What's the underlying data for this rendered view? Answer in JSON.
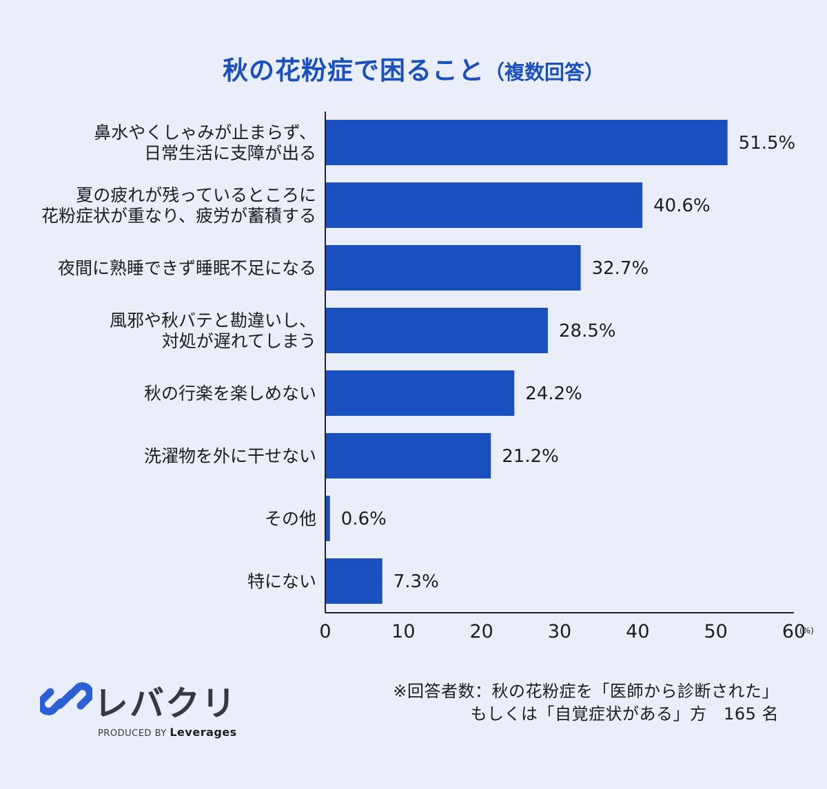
{
  "title": {
    "main": "秋の花粉症で困ること",
    "sub": "（複数回答）"
  },
  "chart_data": {
    "type": "bar",
    "orientation": "horizontal",
    "categories": [
      [
        "鼻水やくしゃみが止まらず、",
        "日常生活に支障が出る"
      ],
      [
        "夏の疲れが残っているところに",
        "花粉症状が重なり、疲労が蓄積する"
      ],
      [
        "夜間に熟睡できず睡眠不足になる"
      ],
      [
        "風邪や秋バテと勘違いし、",
        "対処が遅れてしまう"
      ],
      [
        "秋の行楽を楽しめない"
      ],
      [
        "洗濯物を外に干せない"
      ],
      [
        "その他"
      ],
      [
        "特にない"
      ]
    ],
    "values": [
      51.5,
      40.6,
      32.7,
      28.5,
      24.2,
      21.2,
      0.6,
      7.3
    ],
    "value_labels": [
      "51.5%",
      "40.6%",
      "32.7%",
      "28.5%",
      "24.2%",
      "21.2%",
      "0.6%",
      "7.3%"
    ],
    "xlim": [
      0,
      60
    ],
    "xticks": [
      0,
      10,
      20,
      30,
      40,
      50,
      60
    ],
    "xunit": "(%)",
    "bar_color": "#1a4fbf",
    "grid": false
  },
  "footnote": {
    "line1": "※回答者数：秋の花粉症を「医師から診断された」",
    "line2": "もしくは「自覚症状がある」方　165 名"
  },
  "logo": {
    "wordmark": "レバクリ",
    "produced_by": "PRODUCED BY",
    "company": "Leverages",
    "color": "#2b5fd6"
  }
}
